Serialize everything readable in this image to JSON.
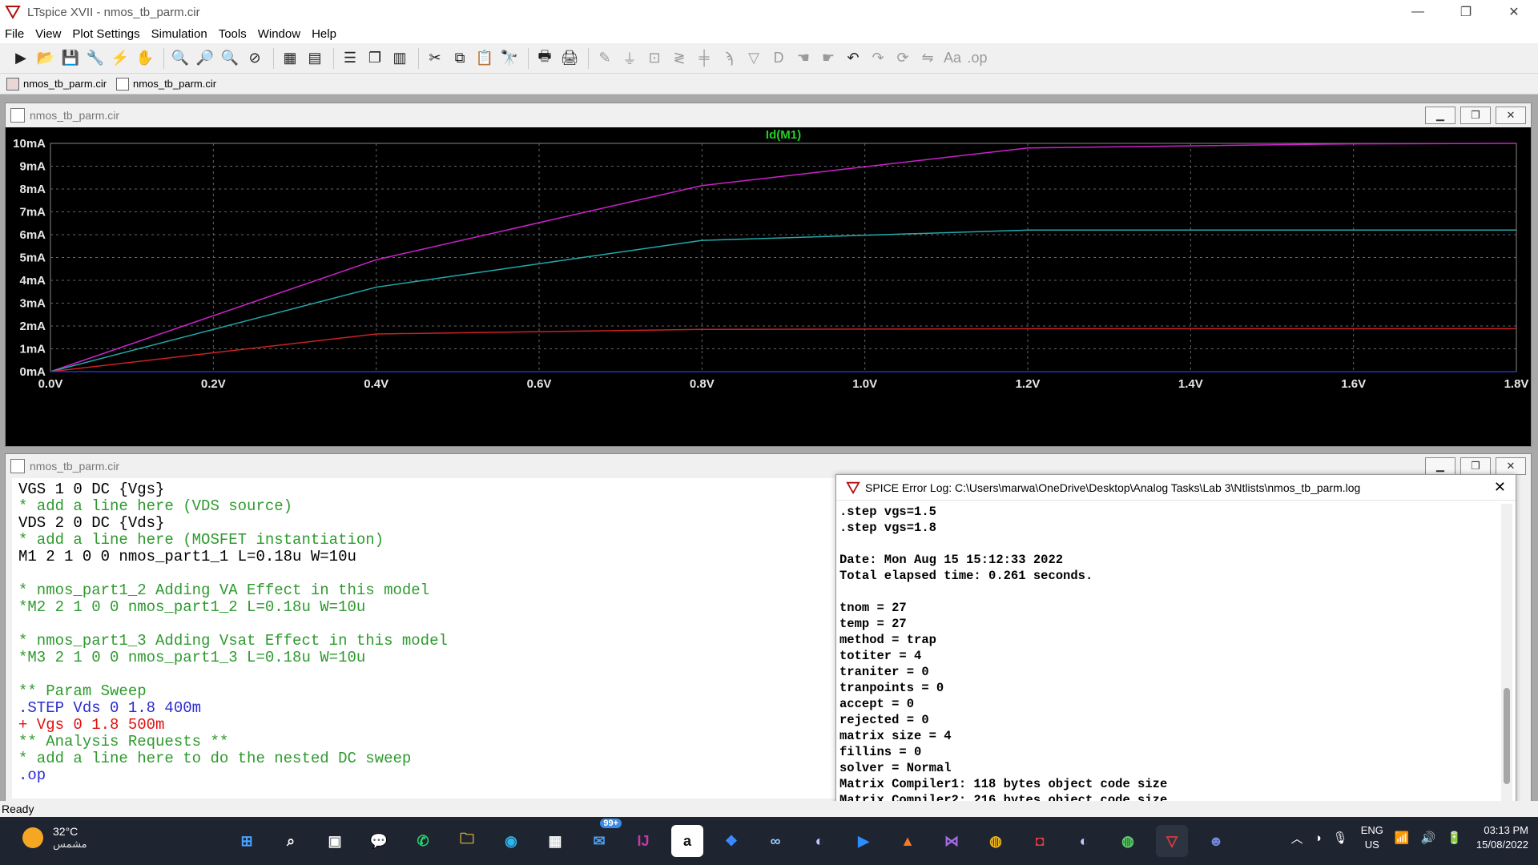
{
  "window": {
    "title": "LTspice XVII - nmos_tb_parm.cir",
    "min": "—",
    "max": "❐",
    "close": "✕"
  },
  "menu": [
    "File",
    "View",
    "Plot Settings",
    "Simulation",
    "Tools",
    "Window",
    "Help"
  ],
  "doc_tabs": [
    "nmos_tb_parm.cir",
    "nmos_tb_parm.cir"
  ],
  "plot_window": {
    "title": "nmos_tb_parm.cir"
  },
  "netlist_window": {
    "title": "nmos_tb_parm.cir"
  },
  "chart_data": {
    "type": "line",
    "title": "Id(M1)",
    "xlabel": "",
    "ylabel": "",
    "xlim": [
      0,
      1.8
    ],
    "ylim": [
      0,
      10
    ],
    "x_ticks": [
      "0.0V",
      "0.2V",
      "0.4V",
      "0.6V",
      "0.8V",
      "1.0V",
      "1.2V",
      "1.4V",
      "1.6V",
      "1.8V"
    ],
    "y_ticks": [
      "0mA",
      "1mA",
      "2mA",
      "3mA",
      "4mA",
      "5mA",
      "6mA",
      "7mA",
      "8mA",
      "9mA",
      "10mA"
    ],
    "grid": true,
    "x": [
      0,
      0.4,
      0.8,
      1.2,
      1.6,
      1.8
    ],
    "series": [
      {
        "color": "#cc22cc",
        "values": [
          0,
          4.9,
          8.15,
          9.8,
          9.98,
          10.0
        ]
      },
      {
        "color": "#22aaaa",
        "values": [
          0,
          3.7,
          5.75,
          6.2,
          6.2,
          6.2
        ]
      },
      {
        "color": "#cc2222",
        "values": [
          0,
          1.65,
          1.85,
          1.88,
          1.88,
          1.88
        ]
      },
      {
        "color": "#2233cc",
        "values": [
          0,
          0.0,
          0.0,
          0.0,
          0.0,
          0.0
        ]
      }
    ]
  },
  "netlist": [
    {
      "text": "VGS 1 0 DC {Vgs}",
      "color": "black"
    },
    {
      "text": "* add a line here (VDS source)",
      "color": "green"
    },
    {
      "text": "VDS 2 0 DC {Vds}",
      "color": "black"
    },
    {
      "text": "* add a line here (MOSFET instantiation)",
      "color": "green"
    },
    {
      "text": "M1 2 1 0 0 nmos_part1_1 L=0.18u W=10u",
      "color": "black"
    },
    {
      "text": "",
      "color": "black"
    },
    {
      "text": "* nmos_part1_2 Adding VA Effect in this model",
      "color": "green"
    },
    {
      "text": "*M2 2 1 0 0 nmos_part1_2 L=0.18u W=10u",
      "color": "green"
    },
    {
      "text": "",
      "color": "black"
    },
    {
      "text": "* nmos_part1_3 Adding Vsat Effect in this model",
      "color": "green"
    },
    {
      "text": "*M3 2 1 0 0 nmos_part1_3 L=0.18u W=10u",
      "color": "green"
    },
    {
      "text": "",
      "color": "black"
    },
    {
      "text": "** Param Sweep",
      "color": "green"
    },
    {
      "text": ".STEP Vds 0 1.8 400m",
      "color": "blue"
    },
    {
      "text": "+ Vgs 0 1.8 500m",
      "color": "red"
    },
    {
      "text": "** Analysis Requests **",
      "color": "green"
    },
    {
      "text": "* add a line here to do the nested DC sweep",
      "color": "green"
    },
    {
      "text": ".op",
      "color": "blue"
    }
  ],
  "error_log": {
    "title": "SPICE Error Log: C:\\Users\\marwa\\OneDrive\\Desktop\\Analog Tasks\\Lab 3\\Ntlists\\nmos_tb_parm.log",
    "lines": [
      ".step vgs=1.5",
      ".step vgs=1.8",
      "",
      "Date: Mon Aug 15 15:12:33 2022",
      "Total elapsed time: 0.261 seconds.",
      "",
      "tnom = 27",
      "temp = 27",
      "method = trap",
      "totiter = 4",
      "traniter = 0",
      "tranpoints = 0",
      "accept = 0",
      "rejected = 0",
      "matrix size = 4",
      "fillins = 0",
      "solver = Normal",
      "Matrix Compiler1: 118 bytes object code size",
      "Matrix Compiler2: 216 bytes object code size"
    ]
  },
  "status": "Ready",
  "taskbar": {
    "weather_temp": "32°C",
    "weather_cond": "مشمس",
    "mail_badge": "99+",
    "lang1": "ENG",
    "lang2": "US",
    "time": "03:13 PM",
    "date": "15/08/2022"
  }
}
